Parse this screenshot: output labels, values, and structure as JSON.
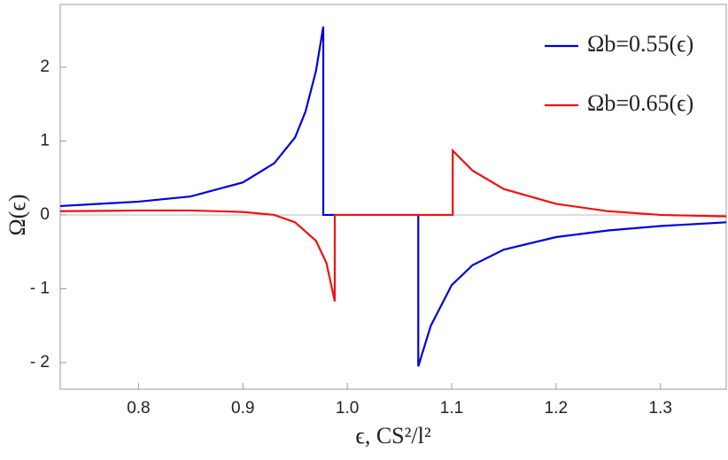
{
  "chart_data": {
    "type": "line",
    "x_label": "ϵ, CS²/l²",
    "y_label": "Ω(ϵ)",
    "xlim": [
      0.725,
      1.363
    ],
    "ylim": [
      -2.36,
      2.85
    ],
    "xticks": [
      0.8,
      0.9,
      {
        "value": 1.0,
        "label": "1.0"
      },
      1.1,
      1.2,
      1.3
    ],
    "yticks": [
      {
        "value": -2,
        "label": "- 2"
      },
      {
        "value": -1,
        "label": "- 1"
      },
      0,
      1,
      2
    ],
    "legend": "top-right",
    "series": [
      {
        "name": "Ωb=0.55(ϵ)",
        "color": "#0000dd",
        "x": [
          0.725,
          0.75,
          0.8,
          0.85,
          0.9,
          0.93,
          0.95,
          0.96,
          0.97,
          0.977,
          0.977,
          1.068,
          1.068,
          1.08,
          1.1,
          1.12,
          1.15,
          1.2,
          1.25,
          1.3,
          1.363
        ],
        "values": [
          0.12,
          0.14,
          0.18,
          0.25,
          0.44,
          0.7,
          1.05,
          1.4,
          1.95,
          2.55,
          0,
          0,
          -2.05,
          -1.5,
          -0.95,
          -0.68,
          -0.47,
          -0.3,
          -0.21,
          -0.15,
          -0.1
        ]
      },
      {
        "name": "Ωb=0.65(ϵ)",
        "color": "#ee1111",
        "x": [
          0.725,
          0.8,
          0.85,
          0.9,
          0.93,
          0.95,
          0.97,
          0.98,
          0.988,
          0.988,
          1.101,
          1.101,
          1.12,
          1.15,
          1.2,
          1.25,
          1.3,
          1.363
        ],
        "values": [
          0.05,
          0.06,
          0.06,
          0.04,
          0.0,
          -0.1,
          -0.35,
          -0.65,
          -1.17,
          0,
          0,
          0.87,
          0.6,
          0.35,
          0.15,
          0.05,
          0.0,
          -0.02
        ]
      }
    ]
  }
}
